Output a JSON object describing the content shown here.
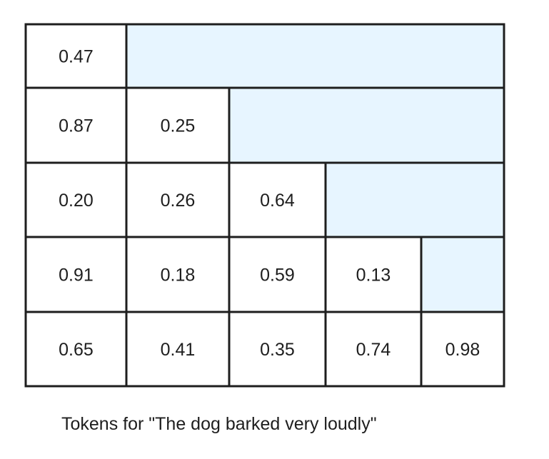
{
  "matrix": {
    "rows": [
      [
        "0.47"
      ],
      [
        "0.87",
        "0.25"
      ],
      [
        "0.20",
        "0.26",
        "0.64"
      ],
      [
        "0.91",
        "0.18",
        "0.59",
        "0.13"
      ],
      [
        "0.65",
        "0.41",
        "0.35",
        "0.74",
        "0.98"
      ]
    ],
    "masked_fill": "#e7f5ff",
    "cell_fill": "#ffffff",
    "border_color": "#1e1e1e"
  },
  "caption": "Tokens for \"The dog barked very loudly\""
}
